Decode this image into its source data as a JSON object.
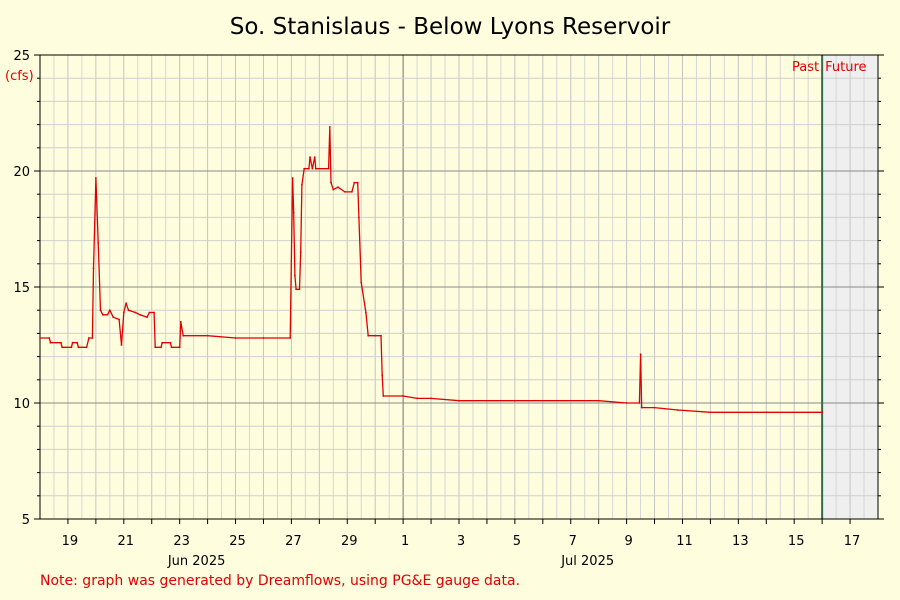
{
  "chart_data": {
    "type": "line",
    "title": "So. Stanislaus - Below Lyons Reservoir",
    "ylabel": "(cfs)",
    "ylim": [
      5,
      25
    ],
    "yticks": [
      5,
      10,
      15,
      20,
      25
    ],
    "x_start": "2025-06-18",
    "x_end": "2025-07-18",
    "now": "2025-07-16",
    "x_tick_labels": [
      {
        "date": "2025-06-19",
        "label": "19"
      },
      {
        "date": "2025-06-21",
        "label": "21"
      },
      {
        "date": "2025-06-23",
        "label": "23"
      },
      {
        "date": "2025-06-25",
        "label": "25"
      },
      {
        "date": "2025-06-27",
        "label": "27"
      },
      {
        "date": "2025-06-29",
        "label": "29"
      },
      {
        "date": "2025-07-01",
        "label": "1"
      },
      {
        "date": "2025-07-03",
        "label": "3"
      },
      {
        "date": "2025-07-05",
        "label": "5"
      },
      {
        "date": "2025-07-07",
        "label": "7"
      },
      {
        "date": "2025-07-09",
        "label": "9"
      },
      {
        "date": "2025-07-11",
        "label": "11"
      },
      {
        "date": "2025-07-13",
        "label": "13"
      },
      {
        "date": "2025-07-15",
        "label": "15"
      },
      {
        "date": "2025-07-17",
        "label": "17"
      }
    ],
    "month_labels": [
      {
        "date": "2025-06-24",
        "label": "Jun 2025"
      },
      {
        "date": "2025-07-08",
        "label": "Jul 2025"
      }
    ],
    "past_label": "Past",
    "future_label": "Future",
    "grid": true,
    "series": [
      {
        "color": "#e00000",
        "points": [
          [
            "2025-06-18T00:00",
            12.8
          ],
          [
            "2025-06-18T08:00",
            12.8
          ],
          [
            "2025-06-18T09:00",
            12.6
          ],
          [
            "2025-06-18T18:00",
            12.6
          ],
          [
            "2025-06-18T19:00",
            12.4
          ],
          [
            "2025-06-19T03:00",
            12.4
          ],
          [
            "2025-06-19T04:00",
            12.6
          ],
          [
            "2025-06-19T08:00",
            12.6
          ],
          [
            "2025-06-19T09:00",
            12.4
          ],
          [
            "2025-06-19T16:00",
            12.4
          ],
          [
            "2025-06-19T18:00",
            12.8
          ],
          [
            "2025-06-19T21:00",
            12.8
          ],
          [
            "2025-06-19T22:00",
            15.8
          ],
          [
            "2025-06-20T00:00",
            19.7
          ],
          [
            "2025-06-20T02:00",
            16.9
          ],
          [
            "2025-06-20T04:00",
            14.0
          ],
          [
            "2025-06-20T06:00",
            13.8
          ],
          [
            "2025-06-20T10:00",
            13.8
          ],
          [
            "2025-06-20T12:00",
            14.0
          ],
          [
            "2025-06-20T15:00",
            13.7
          ],
          [
            "2025-06-20T20:00",
            13.6
          ],
          [
            "2025-06-20T22:00",
            12.5
          ],
          [
            "2025-06-21T00:00",
            13.9
          ],
          [
            "2025-06-21T02:00",
            14.3
          ],
          [
            "2025-06-21T04:00",
            14.0
          ],
          [
            "2025-06-21T10:00",
            13.9
          ],
          [
            "2025-06-21T14:00",
            13.8
          ],
          [
            "2025-06-21T20:00",
            13.7
          ],
          [
            "2025-06-21T22:00",
            13.9
          ],
          [
            "2025-06-22T02:00",
            13.9
          ],
          [
            "2025-06-22T03:00",
            12.4
          ],
          [
            "2025-06-22T08:00",
            12.4
          ],
          [
            "2025-06-22T09:00",
            12.6
          ],
          [
            "2025-06-22T16:00",
            12.6
          ],
          [
            "2025-06-22T17:00",
            12.4
          ],
          [
            "2025-06-23T00:00",
            12.4
          ],
          [
            "2025-06-23T01:00",
            13.5
          ],
          [
            "2025-06-23T03:00",
            12.9
          ],
          [
            "2025-06-24T00:00",
            12.9
          ],
          [
            "2025-06-25T00:00",
            12.8
          ],
          [
            "2025-06-26T00:00",
            12.8
          ],
          [
            "2025-06-26T23:00",
            12.8
          ],
          [
            "2025-06-27T01:00",
            19.7
          ],
          [
            "2025-06-27T02:00",
            18.2
          ],
          [
            "2025-06-27T03:00",
            15.5
          ],
          [
            "2025-06-27T04:00",
            14.9
          ],
          [
            "2025-06-27T07:00",
            14.9
          ],
          [
            "2025-06-27T08:00",
            16.5
          ],
          [
            "2025-06-27T09:00",
            19.4
          ],
          [
            "2025-06-27T11:00",
            20.1
          ],
          [
            "2025-06-27T15:00",
            20.1
          ],
          [
            "2025-06-27T16:00",
            20.6
          ],
          [
            "2025-06-27T18:00",
            20.1
          ],
          [
            "2025-06-27T20:00",
            20.6
          ],
          [
            "2025-06-27T21:00",
            20.1
          ],
          [
            "2025-06-28T08:00",
            20.1
          ],
          [
            "2025-06-28T09:00",
            21.9
          ],
          [
            "2025-06-28T10:00",
            19.5
          ],
          [
            "2025-06-28T12:00",
            19.2
          ],
          [
            "2025-06-28T16:00",
            19.3
          ],
          [
            "2025-06-28T22:00",
            19.1
          ],
          [
            "2025-06-29T04:00",
            19.1
          ],
          [
            "2025-06-29T06:00",
            19.5
          ],
          [
            "2025-06-29T09:00",
            19.5
          ],
          [
            "2025-06-29T10:00",
            18.0
          ],
          [
            "2025-06-29T12:00",
            15.2
          ],
          [
            "2025-06-29T16:00",
            13.9
          ],
          [
            "2025-06-29T18:00",
            12.9
          ],
          [
            "2025-06-30T00:00",
            12.9
          ],
          [
            "2025-06-30T05:00",
            12.9
          ],
          [
            "2025-06-30T06:00",
            11.2
          ],
          [
            "2025-06-30T07:00",
            10.3
          ],
          [
            "2025-07-01T00:00",
            10.3
          ],
          [
            "2025-07-01T12:00",
            10.2
          ],
          [
            "2025-07-02T00:00",
            10.2
          ],
          [
            "2025-07-03T00:00",
            10.1
          ],
          [
            "2025-07-05T00:00",
            10.1
          ],
          [
            "2025-07-08T00:00",
            10.1
          ],
          [
            "2025-07-09T00:00",
            10.0
          ],
          [
            "2025-07-09T11:00",
            10.0
          ],
          [
            "2025-07-09T12:00",
            12.1
          ],
          [
            "2025-07-09T13:00",
            9.8
          ],
          [
            "2025-07-10T00:00",
            9.8
          ],
          [
            "2025-07-10T20:00",
            9.7
          ],
          [
            "2025-07-12T00:00",
            9.6
          ],
          [
            "2025-07-14T00:00",
            9.6
          ],
          [
            "2025-07-16T00:00",
            9.6
          ]
        ]
      }
    ]
  },
  "footer": {
    "note": "Note: graph was generated by Dreamflows, using PG&E gauge data."
  }
}
